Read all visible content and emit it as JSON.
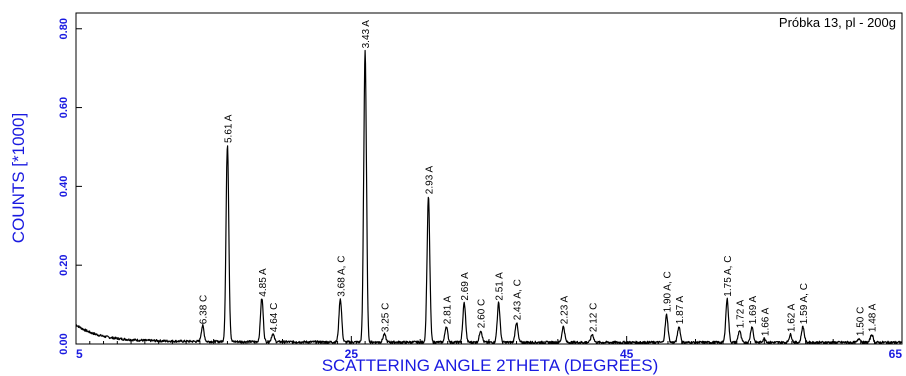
{
  "chart_data": {
    "type": "line",
    "title": "Próbka 13, pl - 200g",
    "xlabel": "SCATTERING ANGLE 2THETA (DEGREES)",
    "ylabel": "COUNTS [*1000]",
    "xlim": [
      5,
      65
    ],
    "ylim": [
      0,
      0.84
    ],
    "x_ticks": [
      5,
      25,
      45,
      65
    ],
    "x_tick_labels": [
      "5",
      "25",
      "45",
      "65"
    ],
    "y_ticks": [
      0,
      0.2,
      0.4,
      0.6,
      0.8
    ],
    "y_tick_labels": [
      "0.00",
      "0.20",
      "0.40",
      "0.60",
      "0.80"
    ],
    "colors": {
      "axis_text": "#1a1ae0",
      "trace": "#000000"
    },
    "peaks": [
      {
        "x": 14.2,
        "y": 0.04,
        "label": "6.38 C"
      },
      {
        "x": 16.0,
        "y": 0.5,
        "label": "5.61 A"
      },
      {
        "x": 18.5,
        "y": 0.11,
        "label": "4.85 A"
      },
      {
        "x": 19.3,
        "y": 0.02,
        "label": "4.64 C"
      },
      {
        "x": 24.2,
        "y": 0.11,
        "label": "3.68 A, C"
      },
      {
        "x": 26.0,
        "y": 0.74,
        "label": "3.43 A"
      },
      {
        "x": 27.4,
        "y": 0.02,
        "label": "3.25 C"
      },
      {
        "x": 30.6,
        "y": 0.37,
        "label": "2.93 A"
      },
      {
        "x": 31.9,
        "y": 0.04,
        "label": "2.81 A"
      },
      {
        "x": 33.2,
        "y": 0.1,
        "label": "2.69 A"
      },
      {
        "x": 34.4,
        "y": 0.03,
        "label": "2.60 C"
      },
      {
        "x": 35.7,
        "y": 0.1,
        "label": "2.51 A"
      },
      {
        "x": 37.0,
        "y": 0.05,
        "label": "2.43 A, C"
      },
      {
        "x": 40.4,
        "y": 0.04,
        "label": "2.23 A"
      },
      {
        "x": 42.5,
        "y": 0.02,
        "label": "2.12 C"
      },
      {
        "x": 47.9,
        "y": 0.07,
        "label": "1.90 A, C"
      },
      {
        "x": 48.8,
        "y": 0.04,
        "label": "1.87 A"
      },
      {
        "x": 52.3,
        "y": 0.11,
        "label": "1.75 A, C"
      },
      {
        "x": 53.2,
        "y": 0.03,
        "label": "1.72 A"
      },
      {
        "x": 54.1,
        "y": 0.04,
        "label": "1.69 A"
      },
      {
        "x": 55.0,
        "y": 0.01,
        "label": "1.66 A"
      },
      {
        "x": 56.9,
        "y": 0.02,
        "label": "1.62 A"
      },
      {
        "x": 57.8,
        "y": 0.04,
        "label": "1.59 A, C"
      },
      {
        "x": 61.9,
        "y": 0.01,
        "label": "1.50 C"
      },
      {
        "x": 62.8,
        "y": 0.02,
        "label": "1.48 A"
      }
    ]
  }
}
